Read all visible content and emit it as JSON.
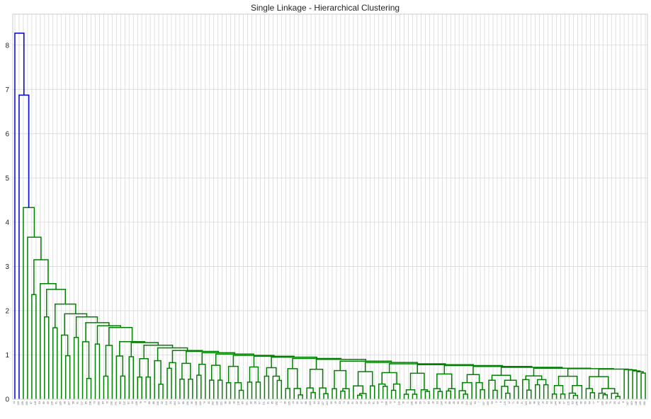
{
  "chart_data": {
    "type": "dendrogram",
    "title": "Single Linkage - Hierarchical Clustering",
    "xlabel": "",
    "ylabel": "",
    "ylim": [
      0,
      8.7
    ],
    "yticks": [
      0,
      1,
      2,
      3,
      4,
      5,
      6,
      7,
      8
    ],
    "grid": true,
    "n_leaves": 150,
    "colors": {
      "above_threshold": "#0000cc",
      "cluster": "#008000"
    },
    "leaf_labels": [
      "14",
      "133",
      "135",
      "106",
      "67",
      "118",
      "53",
      "65",
      "69",
      "120",
      "61",
      "105",
      "98",
      "107",
      "58",
      "41",
      "117",
      "85",
      "138",
      "73",
      "100",
      "84",
      "70",
      "130",
      "141",
      "62",
      "112",
      "87",
      "44",
      "139",
      "76",
      "3",
      "66",
      "88",
      "140",
      "52",
      "113",
      "24",
      "104",
      "57",
      "80",
      "126",
      "30",
      "146",
      "122",
      "79",
      "40",
      "102",
      "128",
      "131",
      "38",
      "60",
      "18",
      "116",
      "89",
      "121",
      "42",
      "28",
      "97",
      "111",
      "31",
      "45",
      "132",
      "1",
      "36",
      "125",
      "13",
      "20",
      "47",
      "68",
      "143",
      "34",
      "64",
      "127",
      "124",
      "90",
      "19",
      "33",
      "74",
      "55",
      "91",
      "22",
      "26",
      "27",
      "39",
      "81",
      "99",
      "5",
      "108",
      "72",
      "9",
      "110",
      "78",
      "11",
      "136",
      "46",
      "56",
      "17",
      "83",
      "16",
      "23",
      "134",
      "15",
      "86",
      "25",
      "50",
      "35",
      "114",
      "101",
      "54",
      "7",
      "137",
      "109",
      "93",
      "2",
      "6",
      "119",
      "12",
      "71",
      "49",
      "21",
      "123",
      "82",
      "48",
      "142",
      "10",
      "43",
      "32",
      "144",
      "95",
      "37",
      "115",
      "63",
      "145",
      "96",
      "59",
      "94",
      "77",
      "4",
      "129",
      "92",
      "75",
      "29",
      "51",
      "8",
      "147",
      "103",
      "148",
      "149",
      "150"
    ],
    "merge_heights": {
      "top_blue": [
        8.27,
        6.87
      ],
      "green_chain": [
        4.33,
        3.66,
        3.15,
        2.61,
        2.48,
        2.15,
        1.93,
        1.86,
        1.73,
        1.66,
        1.62,
        1.3,
        1.28,
        1.22,
        1.16,
        1.1,
        1.08,
        1.05,
        1.02,
        0.99,
        0.97,
        0.95,
        0.92,
        0.9,
        0.86,
        0.83,
        0.8,
        0.78,
        0.76,
        0.74,
        0.72,
        0.7,
        0.69,
        0.68,
        0.67,
        0.66,
        0.64,
        0.62
      ]
    }
  }
}
